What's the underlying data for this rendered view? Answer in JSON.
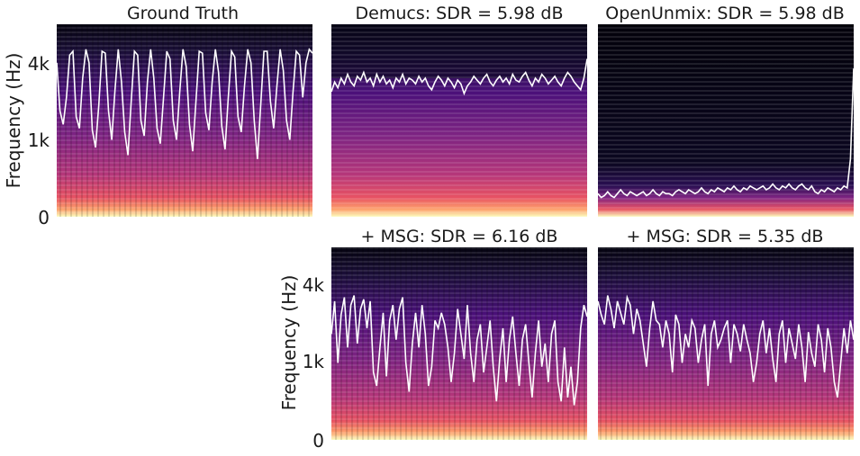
{
  "chart_data": [
    {
      "type": "heatmap",
      "title": "Ground Truth",
      "ylabel": "Frequency (Hz)",
      "yticks": [
        "0",
        "1k",
        "4k"
      ],
      "contour": [
        0.8,
        0.55,
        0.48,
        0.62,
        0.84,
        0.86,
        0.52,
        0.46,
        0.72,
        0.87,
        0.8,
        0.45,
        0.36,
        0.58,
        0.86,
        0.85,
        0.55,
        0.4,
        0.66,
        0.87,
        0.7,
        0.44,
        0.32,
        0.6,
        0.86,
        0.84,
        0.5,
        0.42,
        0.7,
        0.87,
        0.72,
        0.46,
        0.38,
        0.62,
        0.86,
        0.82,
        0.5,
        0.4,
        0.65,
        0.87,
        0.78,
        0.48,
        0.34,
        0.6,
        0.86,
        0.85,
        0.54,
        0.45,
        0.7,
        0.87,
        0.75,
        0.47,
        0.35,
        0.62,
        0.86,
        0.83,
        0.52,
        0.44,
        0.68,
        0.87,
        0.8,
        0.5,
        0.3,
        0.58,
        0.86,
        0.86,
        0.6,
        0.46,
        0.68,
        0.87,
        0.76,
        0.5,
        0.4,
        0.65,
        0.86,
        0.84,
        0.62,
        0.8,
        0.87,
        0.85
      ]
    },
    {
      "type": "heatmap",
      "title": "Demucs: SDR = 5.98 dB",
      "contour": [
        0.65,
        0.7,
        0.67,
        0.72,
        0.69,
        0.74,
        0.7,
        0.68,
        0.73,
        0.71,
        0.75,
        0.7,
        0.72,
        0.68,
        0.74,
        0.7,
        0.73,
        0.69,
        0.71,
        0.67,
        0.72,
        0.7,
        0.74,
        0.69,
        0.72,
        0.71,
        0.69,
        0.73,
        0.7,
        0.72,
        0.68,
        0.66,
        0.7,
        0.73,
        0.71,
        0.68,
        0.72,
        0.7,
        0.67,
        0.71,
        0.69,
        0.64,
        0.68,
        0.7,
        0.73,
        0.71,
        0.69,
        0.72,
        0.74,
        0.7,
        0.68,
        0.71,
        0.73,
        0.7,
        0.72,
        0.69,
        0.74,
        0.71,
        0.7,
        0.73,
        0.75,
        0.71,
        0.68,
        0.72,
        0.7,
        0.74,
        0.72,
        0.69,
        0.71,
        0.73,
        0.7,
        0.68,
        0.72,
        0.75,
        0.73,
        0.7,
        0.68,
        0.66,
        0.72,
        0.82
      ]
    },
    {
      "type": "heatmap",
      "title": "OpenUnmix: SDR = 5.98 dB",
      "contour": [
        0.12,
        0.1,
        0.11,
        0.13,
        0.11,
        0.1,
        0.12,
        0.14,
        0.12,
        0.11,
        0.13,
        0.12,
        0.11,
        0.12,
        0.13,
        0.11,
        0.12,
        0.14,
        0.12,
        0.11,
        0.13,
        0.12,
        0.12,
        0.11,
        0.13,
        0.14,
        0.13,
        0.12,
        0.14,
        0.13,
        0.12,
        0.13,
        0.15,
        0.13,
        0.12,
        0.14,
        0.13,
        0.15,
        0.14,
        0.13,
        0.15,
        0.14,
        0.16,
        0.14,
        0.13,
        0.15,
        0.14,
        0.16,
        0.15,
        0.14,
        0.15,
        0.16,
        0.14,
        0.15,
        0.17,
        0.15,
        0.14,
        0.16,
        0.15,
        0.17,
        0.15,
        0.14,
        0.16,
        0.17,
        0.15,
        0.14,
        0.16,
        0.13,
        0.12,
        0.14,
        0.13,
        0.15,
        0.14,
        0.13,
        0.15,
        0.14,
        0.16,
        0.15,
        0.3,
        0.77
      ]
    },
    {
      "type": "heatmap",
      "title": "+ MSG: SDR = 6.16 dB",
      "ylabel": "Frequency (Hz)",
      "yticks": [
        "0",
        "1k",
        "4k"
      ],
      "contour": [
        0.55,
        0.72,
        0.4,
        0.65,
        0.74,
        0.48,
        0.7,
        0.75,
        0.5,
        0.68,
        0.73,
        0.58,
        0.72,
        0.35,
        0.28,
        0.48,
        0.66,
        0.33,
        0.62,
        0.7,
        0.52,
        0.68,
        0.74,
        0.4,
        0.25,
        0.5,
        0.66,
        0.48,
        0.7,
        0.55,
        0.28,
        0.38,
        0.62,
        0.58,
        0.66,
        0.6,
        0.48,
        0.3,
        0.45,
        0.68,
        0.55,
        0.42,
        0.7,
        0.45,
        0.3,
        0.52,
        0.6,
        0.35,
        0.48,
        0.62,
        0.38,
        0.2,
        0.42,
        0.58,
        0.3,
        0.52,
        0.64,
        0.45,
        0.28,
        0.52,
        0.6,
        0.4,
        0.22,
        0.45,
        0.62,
        0.38,
        0.5,
        0.3,
        0.55,
        0.62,
        0.3,
        0.2,
        0.48,
        0.22,
        0.38,
        0.18,
        0.3,
        0.58,
        0.7,
        0.64
      ]
    },
    {
      "type": "heatmap",
      "title": "+ MSG: SDR = 5.35 dB",
      "contour": [
        0.72,
        0.65,
        0.6,
        0.75,
        0.68,
        0.58,
        0.72,
        0.66,
        0.6,
        0.74,
        0.7,
        0.55,
        0.68,
        0.62,
        0.5,
        0.38,
        0.58,
        0.72,
        0.62,
        0.6,
        0.48,
        0.62,
        0.55,
        0.35,
        0.65,
        0.6,
        0.4,
        0.55,
        0.48,
        0.62,
        0.58,
        0.4,
        0.52,
        0.6,
        0.28,
        0.55,
        0.62,
        0.48,
        0.52,
        0.58,
        0.62,
        0.4,
        0.6,
        0.55,
        0.46,
        0.6,
        0.52,
        0.45,
        0.3,
        0.4,
        0.55,
        0.62,
        0.45,
        0.58,
        0.42,
        0.3,
        0.55,
        0.62,
        0.4,
        0.58,
        0.5,
        0.42,
        0.6,
        0.48,
        0.3,
        0.56,
        0.45,
        0.38,
        0.6,
        0.52,
        0.35,
        0.58,
        0.48,
        0.3,
        0.22,
        0.4,
        0.58,
        0.45,
        0.62,
        0.52
      ]
    }
  ]
}
